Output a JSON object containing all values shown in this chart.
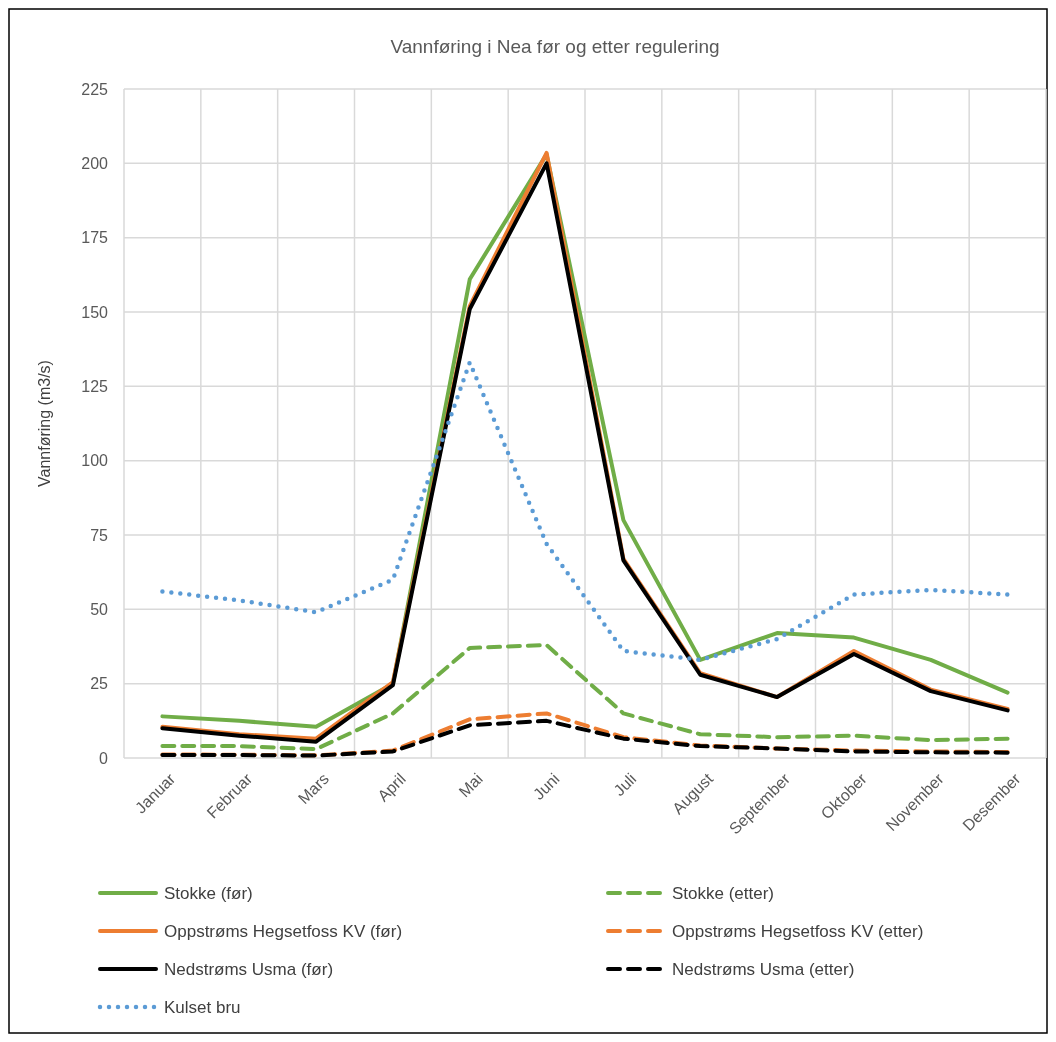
{
  "chart_data": {
    "type": "line",
    "title": "Vannføring i Nea før og etter regulering",
    "ylabel": "Vannføring (m3/s)",
    "categories": [
      "Januar",
      "Februar",
      "Mars",
      "April",
      "Mai",
      "Juni",
      "Juli",
      "August",
      "September",
      "Oktober",
      "November",
      "Desember"
    ],
    "ylim": [
      0,
      225
    ],
    "yticks": [
      0,
      25,
      50,
      75,
      100,
      125,
      150,
      175,
      200,
      225
    ],
    "grid": true,
    "legend": "bottom",
    "marker": "none",
    "series": [
      {
        "name": "Stokke (før)",
        "color": "#70ad47",
        "line_style": "solid",
        "values": [
          14,
          12.5,
          10.5,
          25,
          161,
          203,
          80,
          33,
          42,
          40.5,
          33,
          22
        ]
      },
      {
        "name": "Stokke (etter)",
        "color": "#70ad47",
        "line_style": "dashed",
        "values": [
          4,
          4,
          3,
          15,
          37,
          38,
          15,
          8,
          7,
          7.5,
          6,
          6.5
        ]
      },
      {
        "name": "Oppstrøms Hegsetfoss KV (før)",
        "color": "#ed7d31",
        "line_style": "solid",
        "values": [
          10.5,
          8,
          6.5,
          25.5,
          152,
          203.5,
          67,
          28.5,
          20.5,
          36,
          23,
          16.5
        ]
      },
      {
        "name": "Oppstrøms Hegsetfoss KV (etter)",
        "color": "#ed7d31",
        "line_style": "dashed",
        "values": [
          1.2,
          1.1,
          0.9,
          2.5,
          13,
          15,
          7,
          4.2,
          3.2,
          2.5,
          2.2,
          2
        ]
      },
      {
        "name": "Nedstrøms Usma (før)",
        "color": "#000000",
        "line_style": "solid",
        "values": [
          10,
          7.5,
          5.5,
          24.5,
          151,
          200,
          66.5,
          28,
          20.5,
          35,
          22.5,
          16
        ]
      },
      {
        "name": "Nedstrøms Usma (etter)",
        "color": "#000000",
        "line_style": "dashed",
        "values": [
          1,
          1,
          0.8,
          2.2,
          11,
          12.5,
          6.5,
          4,
          3.2,
          2.2,
          1.9,
          1.8
        ]
      },
      {
        "name": "Kulset bru",
        "color": "#5b9bd5",
        "line_style": "dotted",
        "values": [
          56,
          53,
          49,
          60,
          133,
          72,
          36,
          33,
          40,
          55,
          56.5,
          55
        ]
      }
    ]
  }
}
